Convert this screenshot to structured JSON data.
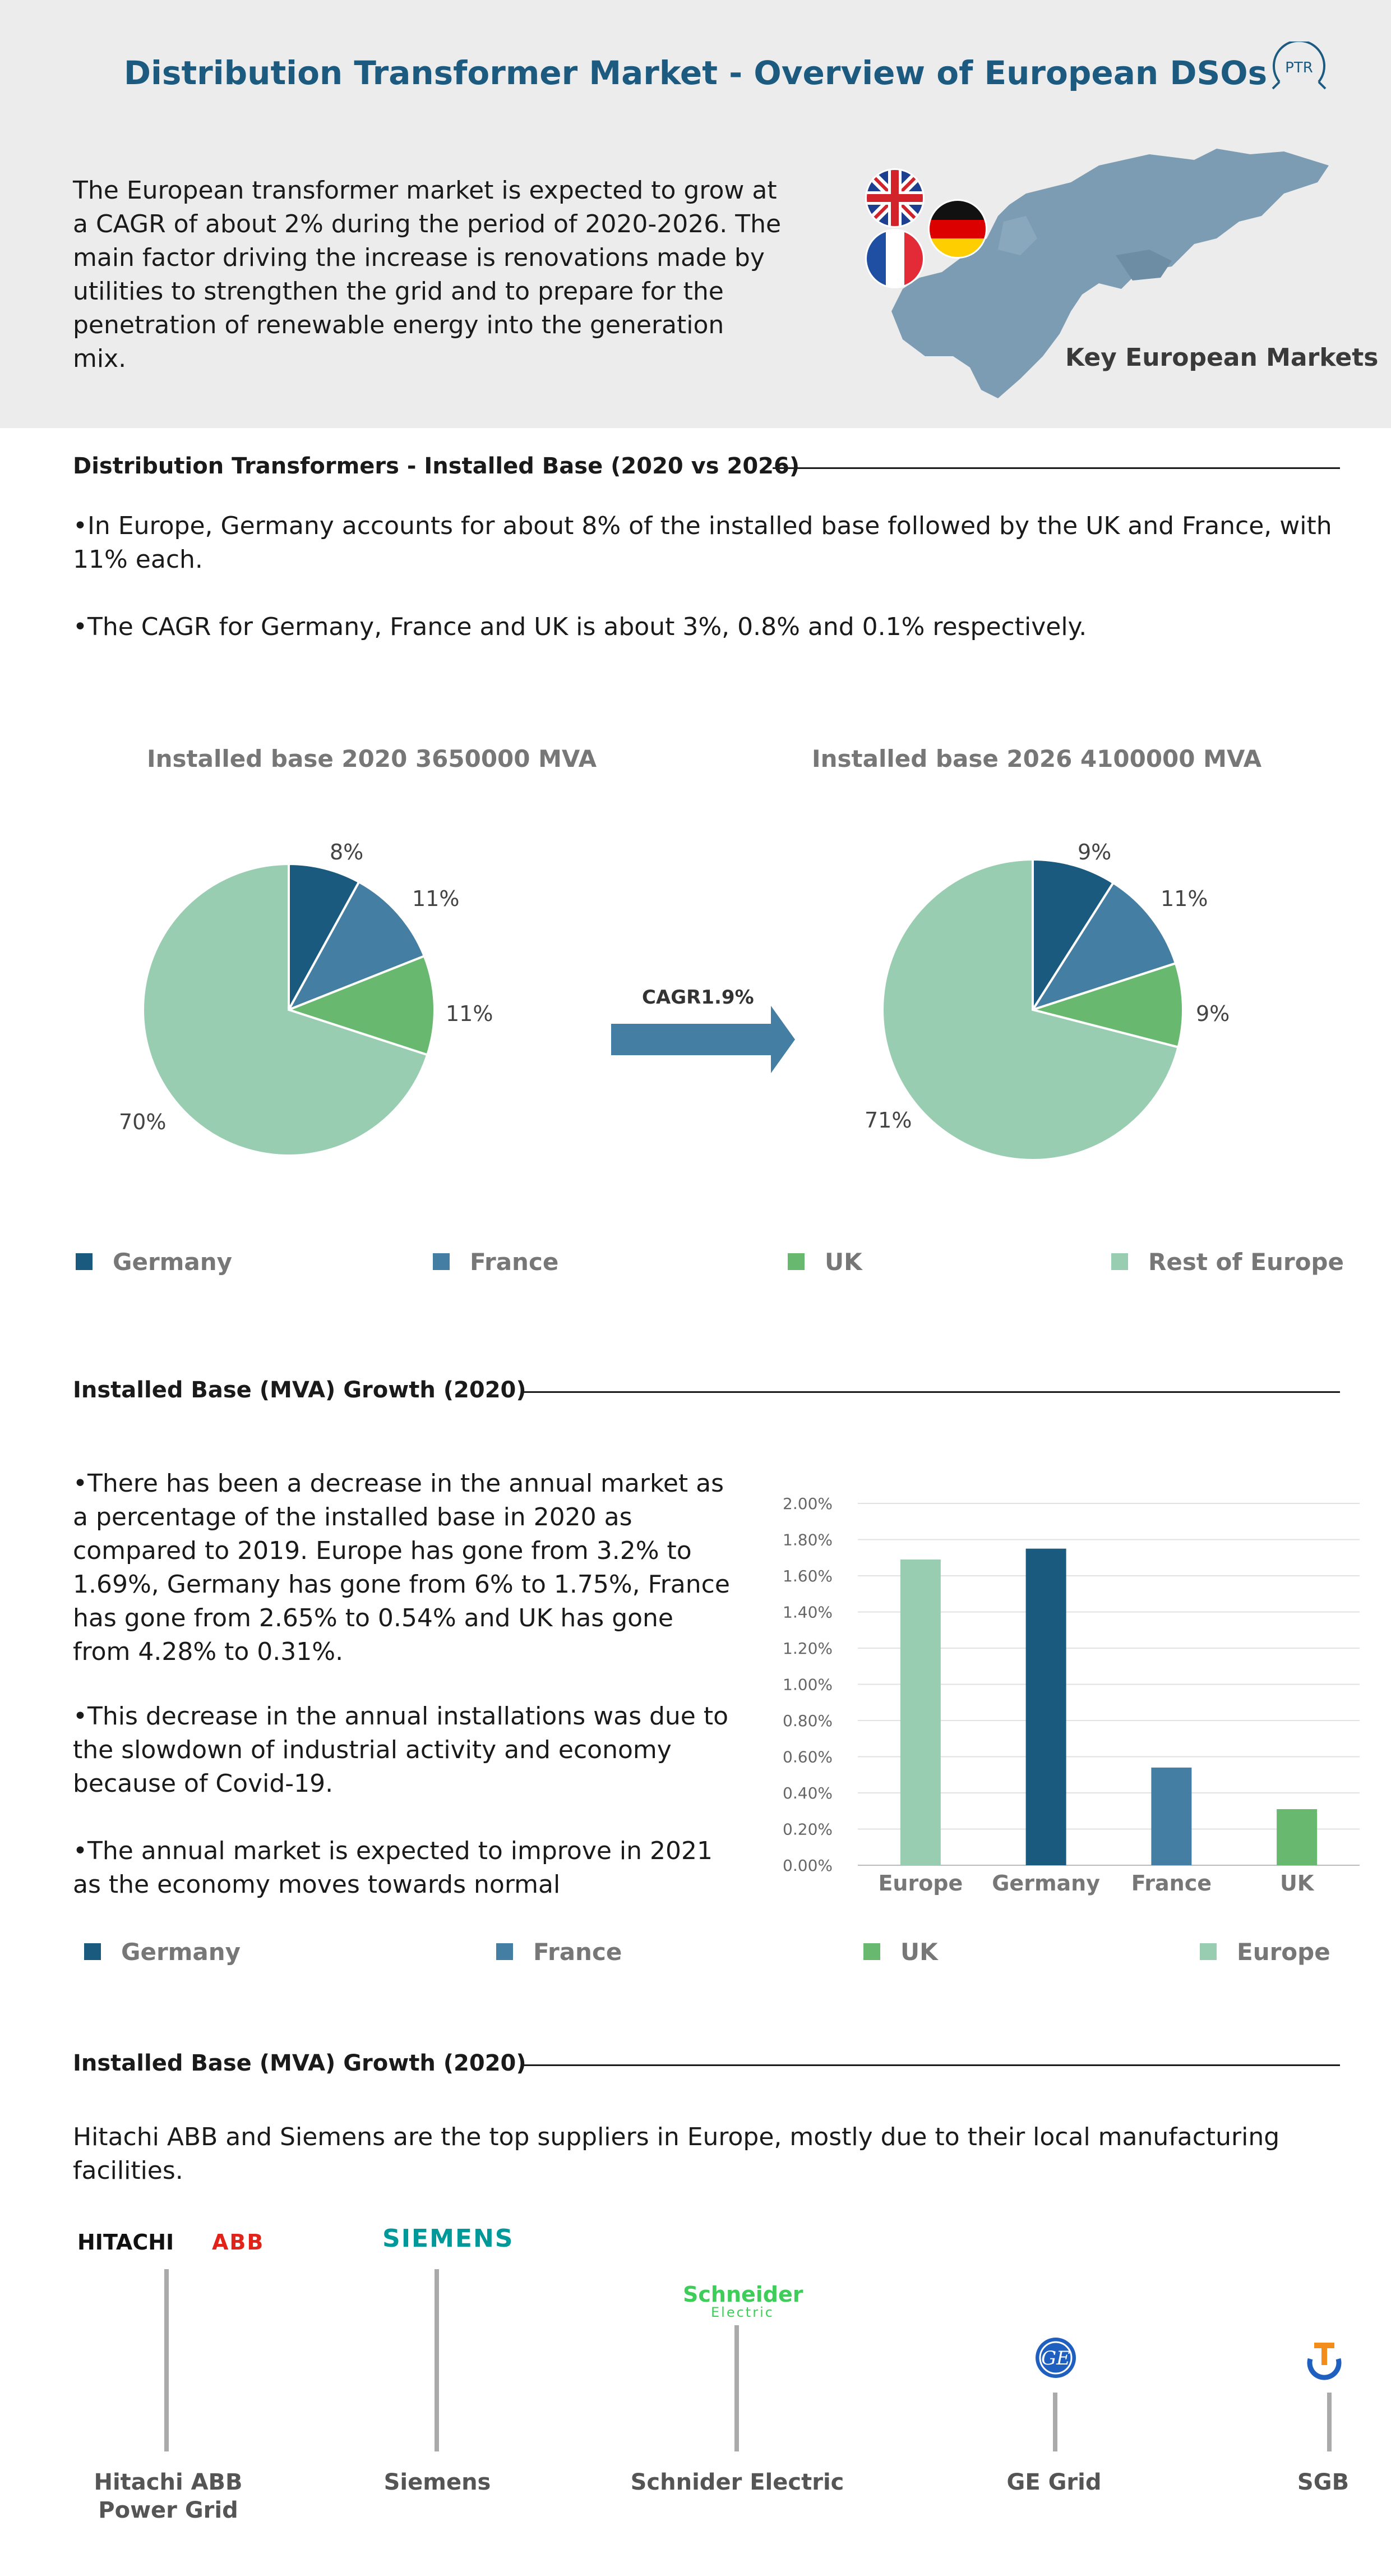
{
  "header": {
    "title": "Distribution Transformer Market - Overview of European DSOs",
    "logo_text": "PTR",
    "intro": "The European transformer market is expected to grow at a CAGR of about 2% during the period of 2020-2026. The main factor driving the increase is renovations made by utilities to strengthen the grid and to prepare for the penetration of renewable energy into the generation mix.",
    "map_label": "Key European Markets"
  },
  "section1": {
    "heading": "Distribution Transformers - Installed Base (2020 vs 2026)",
    "bullet1": "•In Europe, Germany accounts for about 8% of the installed base followed by the UK and France, with 11% each.",
    "bullet2": "•The CAGR for Germany, France and UK is about 3%, 0.8% and 0.1% respectively.",
    "arrow_label": "CAGR1.9%"
  },
  "section2": {
    "heading": "Installed Base (MVA) Growth (2020)",
    "bullet1": "•There has been a decrease in the annual market as a percentage of the installed base in 2020 as compared to 2019. Europe has gone from 3.2% to 1.69%, Germany has gone from 6% to 1.75%, France has gone from 2.65% to 0.54% and UK has gone from 4.28% to 0.31%.",
    "bullet2": "•This decrease in the annual installations was due to the slowdown of industrial activity and economy because of Covid-19.",
    "bullet3": "•The annual market is expected to improve in 2021 as the economy moves towards normal"
  },
  "section3": {
    "heading": "Installed Base (MVA) Growth (2020)",
    "text": "Hitachi ABB and Siemens are the top suppliers in Europe, mostly due to their local manufacturing facilities.",
    "logos": {
      "hitachi": "HITACHI",
      "abb": "ABB",
      "siemens": "SIEMENS",
      "schneider1": "Schneider",
      "schneider2": "Electric"
    },
    "suppliers": [
      "Hitachi ABB Power Grid",
      "Siemens",
      "Schnider Electric",
      "GE Grid",
      "SGB"
    ]
  },
  "colors": {
    "germany": "#1b5a7f",
    "france": "#447ea2",
    "uk": "#68b96f",
    "rest": "#99cdb2",
    "accent": "#1c5a80"
  },
  "chart_data": [
    {
      "type": "pie",
      "title": "Installed base 2020 3650000 MVA",
      "categories": [
        "Germany",
        "France",
        "UK",
        "Rest of Europe"
      ],
      "values": [
        8,
        11,
        11,
        70
      ],
      "labels": [
        "8%",
        "11%",
        "11%",
        "70%"
      ]
    },
    {
      "type": "pie",
      "title": "Installed base 2026 4100000 MVA",
      "categories": [
        "Germany",
        "France",
        "UK",
        "Rest of Europe"
      ],
      "values": [
        9,
        11,
        9,
        71
      ],
      "labels": [
        "9%",
        "11%",
        "9%",
        "71%"
      ]
    },
    {
      "type": "bar",
      "categories": [
        "Europe",
        "Germany",
        "France",
        "UK"
      ],
      "values": [
        1.69,
        1.75,
        0.54,
        0.31
      ],
      "ylim": [
        0,
        2.0
      ],
      "yticks": [
        "0.00%",
        "0.20%",
        "0.40%",
        "0.60%",
        "0.80%",
        "1.00%",
        "1.20%",
        "1.40%",
        "1.60%",
        "1.80%",
        "2.00%"
      ],
      "grid": true
    }
  ],
  "legend_pies": [
    "Germany",
    "France",
    "UK",
    "Rest of Europe"
  ],
  "legend_bars": [
    "Germany",
    "France",
    "UK",
    "Europe"
  ]
}
